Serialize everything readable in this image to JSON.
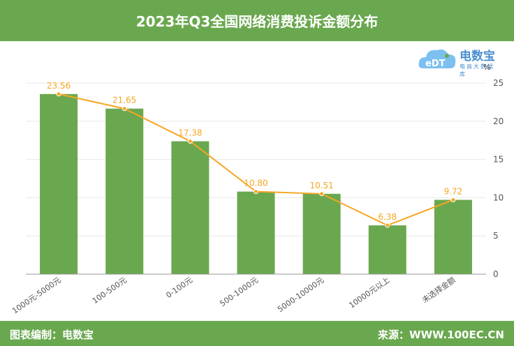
{
  "header": {
    "title": "2023年Q3全国网络消费投诉金额分布"
  },
  "footer": {
    "left_text": "图表编制：电数宝",
    "right_text": "来源：WWW.100EC.CN"
  },
  "logo": {
    "brand": "电数宝",
    "sub": "电商大数据库",
    "icon_text": "eDT"
  },
  "colors": {
    "bar": "#6aa84f",
    "line": "#f5a623",
    "accent": "#6aa84f"
  },
  "chart_data": {
    "type": "bar",
    "categories": [
      "1000元-5000元",
      "100-500元",
      "0-100元",
      "500-1000元",
      "5000-10000元",
      "10000元以上",
      "未选择金额"
    ],
    "series": [
      {
        "values": [
          23.56,
          21.65,
          17.38,
          10.8,
          10.51,
          6.38,
          9.72
        ]
      }
    ],
    "value_labels": [
      "23.56",
      "21.65",
      "17.38",
      "10.80",
      "10.51",
      "6.38",
      "9.72"
    ],
    "line_overlay": true,
    "y_unit": "%",
    "ylim": [
      0,
      25
    ],
    "y_ticks": [
      "0",
      "5",
      "10",
      "15",
      "20",
      "25"
    ],
    "y_axis_position": "right",
    "grid": true
  }
}
